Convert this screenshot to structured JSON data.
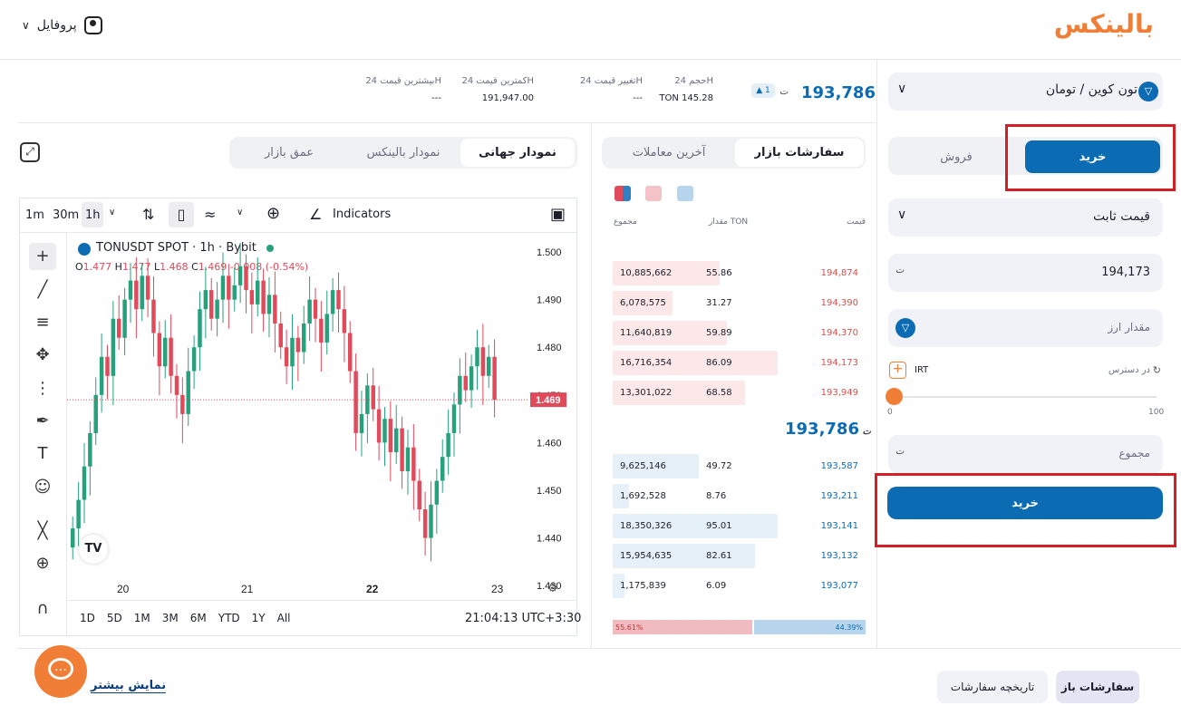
{
  "header": {
    "logo_text": "بالینکس",
    "profile_label": "پروفایل"
  },
  "ticker": {
    "price": "193,786",
    "change_badge": "1",
    "currency_icon": "toman-icon",
    "stats": [
      {
        "label": "حجم 24H",
        "value": "TON 145.28"
      },
      {
        "label": "تغییر قیمت 24H",
        "value": "---"
      },
      {
        "label": "کمترین قیمت 24H",
        "value": "191,947.00"
      },
      {
        "label": "بیشترین قیمت 24H",
        "value": "---"
      }
    ]
  },
  "chart_tabs": [
    "نمودار جهانی",
    "نمودار بالینکس",
    "عمق بازار"
  ],
  "book_tabs": [
    "سفارشات بازار",
    "آخرین معاملات"
  ],
  "book": {
    "headers": {
      "price": "قیمت",
      "amount": "مقدار TON",
      "total": "مجموع"
    },
    "asks": [
      {
        "price": "194,874",
        "amount": "55.86",
        "total": "10,885,662",
        "depth": 0.65
      },
      {
        "price": "194,390",
        "amount": "31.27",
        "total": "6,078,575",
        "depth": 0.36
      },
      {
        "price": "194,370",
        "amount": "59.89",
        "total": "11,640,819",
        "depth": 0.69
      },
      {
        "price": "194,173",
        "amount": "86.09",
        "total": "16,716,354",
        "depth": 1.0
      },
      {
        "price": "193,949",
        "amount": "68.58",
        "total": "13,301,022",
        "depth": 0.8
      }
    ],
    "mid_price": "193,786",
    "bids": [
      {
        "price": "193,587",
        "amount": "49.72",
        "total": "9,625,146",
        "depth": 0.52
      },
      {
        "price": "193,211",
        "amount": "8.76",
        "total": "1,692,528",
        "depth": 0.1
      },
      {
        "price": "193,141",
        "amount": "95.01",
        "total": "18,350,326",
        "depth": 1.0
      },
      {
        "price": "193,132",
        "amount": "82.61",
        "total": "15,954,635",
        "depth": 0.86
      },
      {
        "price": "193,077",
        "amount": "6.09",
        "total": "1,175,839",
        "depth": 0.07
      }
    ],
    "sell_pct": "55.61%",
    "buy_pct": "44.39%"
  },
  "order_form": {
    "market": "تون کوین / تومان",
    "buy_tab": "خرید",
    "sell_tab": "فروش",
    "order_type": "قیمت ثابت",
    "price_value": "194,173",
    "amount_placeholder": "مقدار ارز",
    "available_label": "در دسترس",
    "available_currency": "IRT",
    "slider_min": "0",
    "slider_max": "100",
    "slider_value": 0,
    "total_placeholder": "مجموع",
    "submit_label": "خرید"
  },
  "tradingview": {
    "timeframes": [
      "1m",
      "30m",
      "1h"
    ],
    "indicators_label": "Indicators",
    "symbol": "TONUSDT SPOT · 1h · Bybit",
    "ohlc": {
      "o": "1.477",
      "h": "1.477",
      "l": "1.468",
      "c": "1.469",
      "chg": "-0.008 (-0.54%)"
    },
    "last_price": "1.469",
    "range_buttons": [
      "1D",
      "5D",
      "1M",
      "3M",
      "6M",
      "YTD",
      "1Y",
      "All"
    ],
    "clock": "21:04:13 UTC+3:30",
    "logo": "TV"
  },
  "bottom": {
    "tabs": [
      "سفارشات باز",
      "تاریخچه سفارشات"
    ],
    "show_more": "نمایش بیشتر"
  },
  "colors": {
    "accent": "#0c6cb3",
    "brand": "#f07e36",
    "up": "#26a17b",
    "down": "#e04a5a",
    "highlight": "#d41f26"
  },
  "chart_data": {
    "type": "candlestick",
    "yticks": [
      "1.500",
      "1.490",
      "1.480",
      "1.470",
      "1.460",
      "1.450",
      "1.440",
      "1.430"
    ],
    "ylim": [
      1.427,
      1.504
    ],
    "xticks": [
      "20",
      "21",
      "22",
      "23"
    ],
    "last_price": 1.469,
    "closes": [
      1.442,
      1.448,
      1.455,
      1.462,
      1.47,
      1.478,
      1.474,
      1.486,
      1.482,
      1.49,
      1.494,
      1.488,
      1.495,
      1.49,
      1.483,
      1.476,
      1.482,
      1.474,
      1.47,
      1.466,
      1.475,
      1.48,
      1.488,
      1.492,
      1.486,
      1.49,
      1.495,
      1.49,
      1.493,
      1.497,
      1.492,
      1.489,
      1.494,
      1.487,
      1.491,
      1.485,
      1.48,
      1.476,
      1.482,
      1.479,
      1.485,
      1.49,
      1.486,
      1.481,
      1.487,
      1.492,
      1.488,
      1.483,
      1.475,
      1.462,
      1.466,
      1.472,
      1.467,
      1.46,
      1.465,
      1.458,
      1.463,
      1.454,
      1.459,
      1.452,
      1.446,
      1.44,
      1.447,
      1.452,
      1.457,
      1.462,
      1.468,
      1.474,
      1.471,
      1.476,
      1.48,
      1.474,
      1.478,
      1.469
    ]
  }
}
